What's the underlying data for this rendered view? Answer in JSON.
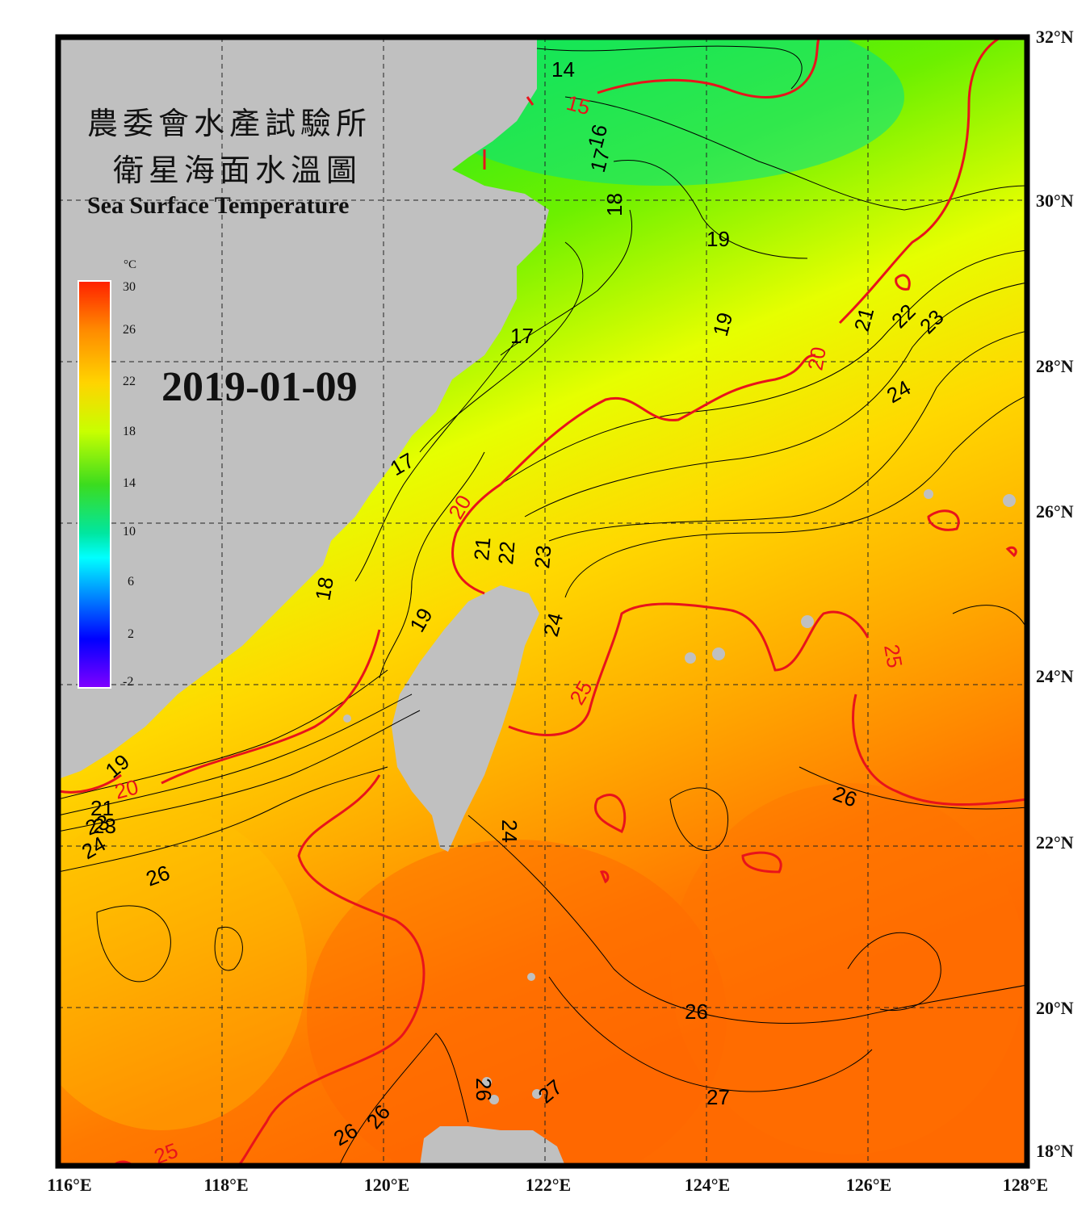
{
  "title": {
    "line1": "農委會水產試驗所",
    "line2": "衛星海面水溫圖",
    "line3": "Sea Surface Temperature"
  },
  "date": "2019-01-09",
  "colorbar": {
    "unit": "°C",
    "ticks": [
      "30",
      "26",
      "22",
      "18",
      "14",
      "10",
      "6",
      "2",
      "-2"
    ],
    "colors": [
      "#ff2000",
      "#ff8a00",
      "#ffd400",
      "#c8ff00",
      "#3cdc1e",
      "#00e6a0",
      "#00ffff",
      "#0080ff",
      "#0000ff",
      "#8000ff"
    ]
  },
  "axes": {
    "lat_labels": [
      "32°N",
      "30°N",
      "28°N",
      "26°N",
      "24°N",
      "22°N",
      "20°N",
      "18°N"
    ],
    "lon_labels": [
      "116°E",
      "118°E",
      "120°E",
      "122°E",
      "124°E",
      "126°E",
      "128°E"
    ]
  },
  "contour_labels": {
    "black": [
      "14",
      "16",
      "17",
      "18",
      "19",
      "19",
      "17",
      "17",
      "18",
      "19",
      "21",
      "22",
      "23",
      "24",
      "21",
      "22",
      "23",
      "24",
      "19",
      "23",
      "24",
      "26",
      "26",
      "24",
      "26",
      "27",
      "26",
      "26",
      "27",
      "21",
      "23",
      "24",
      "26"
    ],
    "red": [
      "15",
      "20",
      "20",
      "20",
      "25",
      "25",
      "25"
    ]
  },
  "colors": {
    "land": "#c0c0c0",
    "frame": "#000000",
    "contour_red": "#e8131b",
    "contour_black": "#000000"
  }
}
